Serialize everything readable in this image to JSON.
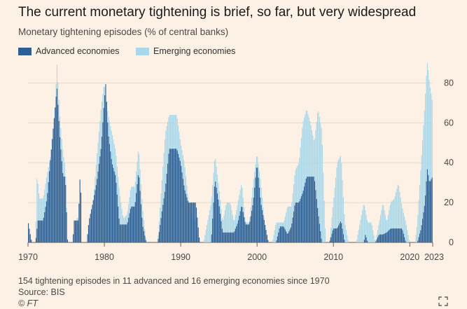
{
  "header": {
    "title": "The current monetary tightening is brief, so far, but very widespread",
    "subtitle": "Monetary tightening episodes (% of central banks)"
  },
  "footer": {
    "note": "154 tightening episodes in 11 advanced and 16 emerging economies since 1970",
    "source": "Source: BIS",
    "copyright": "© FT"
  },
  "chart_data": {
    "type": "area",
    "stacked": false,
    "title": "Monetary tightening episodes (% of central banks)",
    "xlabel": "",
    "ylabel": "",
    "xlim": [
      1970,
      2023
    ],
    "ylim": [
      0,
      90
    ],
    "y_axis_position": "right",
    "grid": "horizontal",
    "legend_position": "top-left",
    "x_ticks": [
      1970,
      1980,
      1990,
      2000,
      2010,
      2020,
      2023
    ],
    "y_ticks": [
      0,
      20,
      40,
      60,
      80
    ],
    "colors": {
      "Advanced economies": "#2e5f94",
      "Emerging economies": "#a8d8ea"
    },
    "series": [
      {
        "name": "Emerging economies",
        "points": [
          [
            1970,
            0
          ],
          [
            1971,
            0
          ],
          [
            1971.2,
            34
          ],
          [
            1971.5,
            22
          ],
          [
            1972,
            22
          ],
          [
            1972.5,
            34
          ],
          [
            1973,
            44
          ],
          [
            1973.5,
            62
          ],
          [
            1973.8,
            90
          ],
          [
            1974.2,
            62
          ],
          [
            1974.6,
            45
          ],
          [
            1974.9,
            38
          ],
          [
            1975.2,
            0
          ],
          [
            1976,
            0
          ],
          [
            1976.5,
            14
          ],
          [
            1977,
            0
          ],
          [
            1978,
            0
          ],
          [
            1978.5,
            18
          ],
          [
            1979,
            42
          ],
          [
            1979.6,
            68
          ],
          [
            1980,
            80
          ],
          [
            1980.5,
            64
          ],
          [
            1981,
            55
          ],
          [
            1981.5,
            46
          ],
          [
            1982,
            25
          ],
          [
            1982.5,
            12
          ],
          [
            1983,
            14
          ],
          [
            1983.5,
            28
          ],
          [
            1984,
            28
          ],
          [
            1984.5,
            48
          ],
          [
            1985,
            18
          ],
          [
            1985.5,
            0
          ],
          [
            1987,
            0
          ],
          [
            1987.5,
            28
          ],
          [
            1988,
            55
          ],
          [
            1988.5,
            64
          ],
          [
            1989,
            64
          ],
          [
            1989.5,
            64
          ],
          [
            1990,
            50
          ],
          [
            1990.5,
            40
          ],
          [
            1991,
            22
          ],
          [
            1991.5,
            14
          ],
          [
            1992,
            10
          ],
          [
            1992.5,
            0
          ],
          [
            1993,
            0
          ],
          [
            1993.5,
            10
          ],
          [
            1994,
            20
          ],
          [
            1994.5,
            44
          ],
          [
            1995,
            28
          ],
          [
            1995.5,
            10
          ],
          [
            1996,
            20
          ],
          [
            1996.5,
            20
          ],
          [
            1997,
            10
          ],
          [
            1997.5,
            20
          ],
          [
            1998,
            30
          ],
          [
            1998.5,
            10
          ],
          [
            1999,
            10
          ],
          [
            1999.5,
            30
          ],
          [
            2000,
            45
          ],
          [
            2000.5,
            30
          ],
          [
            2001,
            10
          ],
          [
            2001.5,
            0
          ],
          [
            2002,
            0
          ],
          [
            2002.5,
            10
          ],
          [
            2003,
            10
          ],
          [
            2003.5,
            10
          ],
          [
            2004,
            18
          ],
          [
            2004.5,
            18
          ],
          [
            2005,
            36
          ],
          [
            2005.5,
            40
          ],
          [
            2006,
            60
          ],
          [
            2006.5,
            67
          ],
          [
            2007,
            60
          ],
          [
            2007.5,
            50
          ],
          [
            2008,
            67
          ],
          [
            2008.5,
            56
          ],
          [
            2009,
            0
          ],
          [
            2009.5,
            0
          ],
          [
            2010,
            20
          ],
          [
            2010.5,
            40
          ],
          [
            2011,
            44
          ],
          [
            2011.5,
            10
          ],
          [
            2012,
            0
          ],
          [
            2013,
            0
          ],
          [
            2013.5,
            10
          ],
          [
            2014,
            20
          ],
          [
            2014.5,
            10
          ],
          [
            2015,
            10
          ],
          [
            2015.5,
            0
          ],
          [
            2016,
            10
          ],
          [
            2016.5,
            20
          ],
          [
            2017,
            10
          ],
          [
            2017.5,
            20
          ],
          [
            2018,
            22
          ],
          [
            2018.5,
            30
          ],
          [
            2019,
            18
          ],
          [
            2019.5,
            10
          ],
          [
            2020,
            0
          ],
          [
            2020.7,
            0
          ],
          [
            2021,
            10
          ],
          [
            2021.5,
            40
          ],
          [
            2022,
            70
          ],
          [
            2022.3,
            92
          ],
          [
            2022.6,
            80
          ],
          [
            2023,
            70
          ]
        ]
      },
      {
        "name": "Advanced economies",
        "points": [
          [
            1970,
            11
          ],
          [
            1970.5,
            0
          ],
          [
            1971,
            0
          ],
          [
            1971.3,
            11
          ],
          [
            1972,
            11
          ],
          [
            1972.5,
            22
          ],
          [
            1973,
            44
          ],
          [
            1973.5,
            65
          ],
          [
            1973.8,
            78
          ],
          [
            1974.2,
            52
          ],
          [
            1974.6,
            33
          ],
          [
            1974.9,
            33
          ],
          [
            1975.2,
            0
          ],
          [
            1975.9,
            0
          ],
          [
            1976,
            11
          ],
          [
            1976.6,
            11
          ],
          [
            1976.9,
            40
          ],
          [
            1977,
            0
          ],
          [
            1977.7,
            0
          ],
          [
            1978,
            11
          ],
          [
            1978.5,
            20
          ],
          [
            1979,
            30
          ],
          [
            1979.6,
            48
          ],
          [
            1980,
            71
          ],
          [
            1980.2,
            80
          ],
          [
            1980.5,
            55
          ],
          [
            1981,
            40
          ],
          [
            1981.5,
            33
          ],
          [
            1982,
            9
          ],
          [
            1983,
            9
          ],
          [
            1983.5,
            18
          ],
          [
            1984,
            18
          ],
          [
            1984.5,
            36
          ],
          [
            1985,
            9
          ],
          [
            1985.5,
            0
          ],
          [
            1987,
            0
          ],
          [
            1987.5,
            14
          ],
          [
            1988,
            27
          ],
          [
            1988.5,
            47
          ],
          [
            1989,
            47
          ],
          [
            1989.5,
            47
          ],
          [
            1990,
            40
          ],
          [
            1990.5,
            27
          ],
          [
            1991,
            20
          ],
          [
            1991.5,
            20
          ],
          [
            1992,
            20
          ],
          [
            1992.5,
            0
          ],
          [
            1994,
            0
          ],
          [
            1994.5,
            32
          ],
          [
            1995,
            20
          ],
          [
            1995.5,
            5
          ],
          [
            1996,
            5
          ],
          [
            1996.5,
            5
          ],
          [
            1997,
            5
          ],
          [
            1997.5,
            10
          ],
          [
            1998,
            19
          ],
          [
            1998.5,
            9
          ],
          [
            1999,
            9
          ],
          [
            1999.5,
            20
          ],
          [
            2000,
            40
          ],
          [
            2000.5,
            20
          ],
          [
            2001,
            10
          ],
          [
            2001.5,
            0
          ],
          [
            2002.5,
            0
          ],
          [
            2003,
            8
          ],
          [
            2003.5,
            8
          ],
          [
            2004,
            4
          ],
          [
            2004.5,
            8
          ],
          [
            2005,
            20
          ],
          [
            2005.5,
            20
          ],
          [
            2006,
            25
          ],
          [
            2006.5,
            33
          ],
          [
            2007,
            33
          ],
          [
            2007.5,
            33
          ],
          [
            2008,
            15
          ],
          [
            2008.5,
            0
          ],
          [
            2009.5,
            0
          ],
          [
            2010,
            7
          ],
          [
            2010.5,
            7
          ],
          [
            2011,
            11
          ],
          [
            2011.5,
            0
          ],
          [
            2014,
            0
          ],
          [
            2014.2,
            4
          ],
          [
            2014.5,
            0
          ],
          [
            2015.5,
            0
          ],
          [
            2016,
            4
          ],
          [
            2016.5,
            4
          ],
          [
            2017,
            5
          ],
          [
            2017.5,
            7
          ],
          [
            2018,
            7
          ],
          [
            2018.5,
            7
          ],
          [
            2019,
            7
          ],
          [
            2019.5,
            0
          ],
          [
            2021,
            0
          ],
          [
            2021.5,
            7
          ],
          [
            2022,
            20
          ],
          [
            2022.3,
            37
          ],
          [
            2022.6,
            30
          ],
          [
            2023,
            33
          ]
        ]
      }
    ]
  }
}
